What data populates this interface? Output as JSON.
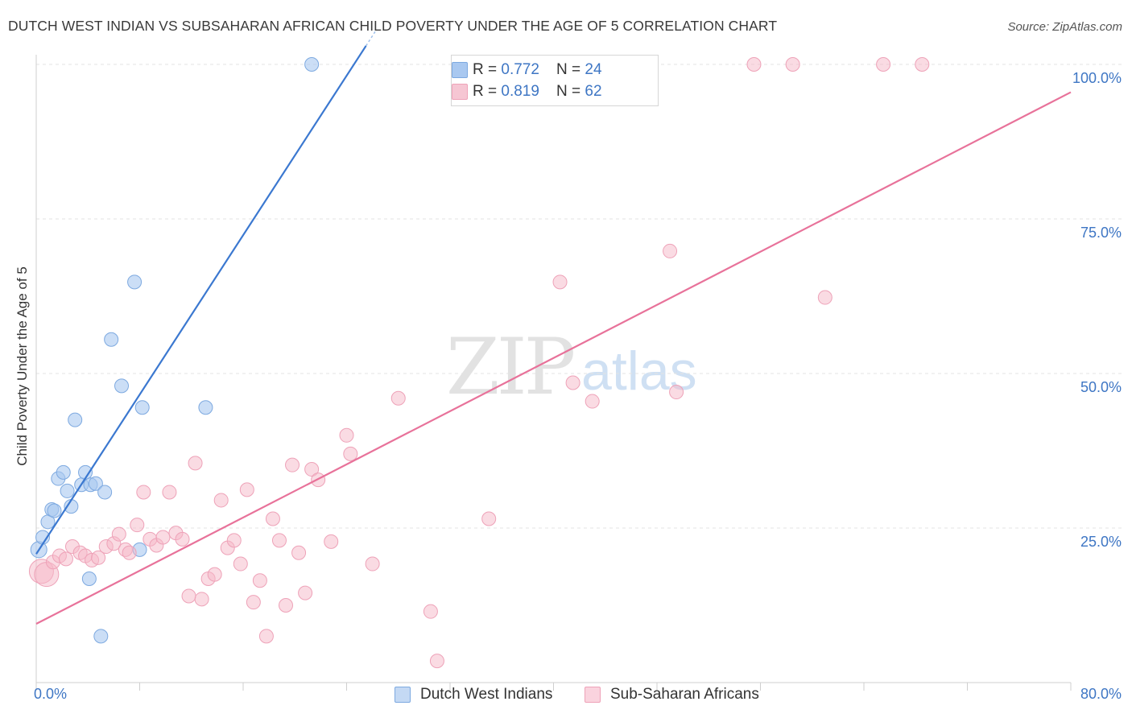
{
  "header": {
    "title": "DUTCH WEST INDIAN VS SUBSAHARAN AFRICAN CHILD POVERTY UNDER THE AGE OF 5 CORRELATION CHART",
    "source": "Source: ZipAtlas.com"
  },
  "watermark": {
    "zip": "ZIP",
    "atlas": "atlas"
  },
  "legend": {
    "rows": [
      {
        "r_label": "R = ",
        "r_value": "0.772",
        "n_label": "N = ",
        "n_value": "24",
        "color": "#a9c8f0"
      },
      {
        "r_label": "R = ",
        "r_value": "0.819",
        "n_label": "N = ",
        "n_value": "62",
        "color": "#f6b8c8"
      }
    ]
  },
  "bottom_legend": {
    "items": [
      {
        "label": "Dutch West Indians",
        "color": "#a9c8f0"
      },
      {
        "label": "Sub-Saharan Africans",
        "color": "#f6b8c8"
      }
    ]
  },
  "chart_data": {
    "type": "scatter",
    "title": "DUTCH WEST INDIAN VS SUBSAHARAN AFRICAN CHILD POVERTY UNDER THE AGE OF 5 CORRELATION CHART",
    "xlabel": "",
    "ylabel": "Child Poverty Under the Age of 5",
    "xlim": [
      0,
      80
    ],
    "ylim": [
      0,
      105
    ],
    "x_tick_labels": [
      "0.0%",
      "80.0%"
    ],
    "y_tick_labels": [
      "25.0%",
      "50.0%",
      "75.0%",
      "100.0%"
    ],
    "y_ticks": [
      25,
      50,
      75,
      100
    ],
    "grid": true,
    "legend_position": "top-center",
    "series": [
      {
        "name": "Dutch West Indians",
        "color": "#3b78d0",
        "fill": "#a9c8f0",
        "trend": {
          "x0": 0,
          "y0": 20.8,
          "x1": 25.5,
          "y1": 103
        },
        "points": [
          [
            0.2,
            21.5
          ],
          [
            0.5,
            23.5
          ],
          [
            0.9,
            26
          ],
          [
            1.2,
            28
          ],
          [
            1.4,
            27.8
          ],
          [
            1.7,
            33
          ],
          [
            2.1,
            34
          ],
          [
            2.4,
            31
          ],
          [
            2.7,
            28.5
          ],
          [
            3.0,
            42.5
          ],
          [
            3.5,
            32
          ],
          [
            3.8,
            34
          ],
          [
            4.2,
            32
          ],
          [
            4.6,
            32.2
          ],
          [
            5.3,
            30.8
          ],
          [
            5.8,
            55.5
          ],
          [
            6.6,
            48
          ],
          [
            7.6,
            64.8
          ],
          [
            8.2,
            44.5
          ],
          [
            8.0,
            21.5
          ],
          [
            13.1,
            44.5
          ],
          [
            4.1,
            16.8
          ],
          [
            5.0,
            7.5
          ],
          [
            21.3,
            100
          ]
        ]
      },
      {
        "name": "Sub-Saharan Africans",
        "color": "#e8729a",
        "fill": "#f6b8c8",
        "trend": {
          "x0": 0,
          "y0": 9.5,
          "x1": 80,
          "y1": 95.5
        },
        "points": [
          [
            0.4,
            18
          ],
          [
            0.8,
            17.5
          ],
          [
            1.3,
            19.5
          ],
          [
            1.8,
            20.5
          ],
          [
            2.3,
            20
          ],
          [
            2.8,
            22
          ],
          [
            3.4,
            21
          ],
          [
            3.8,
            20.5
          ],
          [
            4.3,
            19.8
          ],
          [
            4.8,
            20.2
          ],
          [
            5.4,
            22
          ],
          [
            6.0,
            22.5
          ],
          [
            6.4,
            24
          ],
          [
            6.9,
            21.5
          ],
          [
            7.2,
            21
          ],
          [
            7.8,
            25.5
          ],
          [
            8.3,
            30.8
          ],
          [
            8.8,
            23.2
          ],
          [
            9.3,
            22.2
          ],
          [
            9.8,
            23.5
          ],
          [
            10.3,
            30.8
          ],
          [
            10.8,
            24.2
          ],
          [
            11.3,
            23.2
          ],
          [
            11.8,
            14
          ],
          [
            12.3,
            35.5
          ],
          [
            12.8,
            13.5
          ],
          [
            13.3,
            16.8
          ],
          [
            13.8,
            17.5
          ],
          [
            14.3,
            29.5
          ],
          [
            14.8,
            21.8
          ],
          [
            15.3,
            23
          ],
          [
            15.8,
            19.2
          ],
          [
            16.3,
            31.2
          ],
          [
            16.8,
            13
          ],
          [
            17.3,
            16.5
          ],
          [
            17.8,
            7.5
          ],
          [
            18.3,
            26.5
          ],
          [
            18.8,
            23
          ],
          [
            19.3,
            12.5
          ],
          [
            19.8,
            35.2
          ],
          [
            20.3,
            21
          ],
          [
            20.8,
            14.5
          ],
          [
            21.3,
            34.5
          ],
          [
            21.8,
            32.8
          ],
          [
            22.8,
            22.8
          ],
          [
            24.0,
            40
          ],
          [
            24.3,
            37
          ],
          [
            26.0,
            19.2
          ],
          [
            28.0,
            46
          ],
          [
            30.5,
            11.5
          ],
          [
            31.0,
            3.5
          ],
          [
            35.0,
            26.5
          ],
          [
            40.5,
            64.8
          ],
          [
            41.5,
            48.5
          ],
          [
            43.0,
            45.5
          ],
          [
            49.0,
            69.8
          ],
          [
            49.5,
            47
          ],
          [
            55.5,
            100
          ],
          [
            58.5,
            100
          ],
          [
            61.0,
            62.3
          ],
          [
            65.5,
            100
          ],
          [
            68.5,
            100
          ]
        ]
      }
    ]
  }
}
